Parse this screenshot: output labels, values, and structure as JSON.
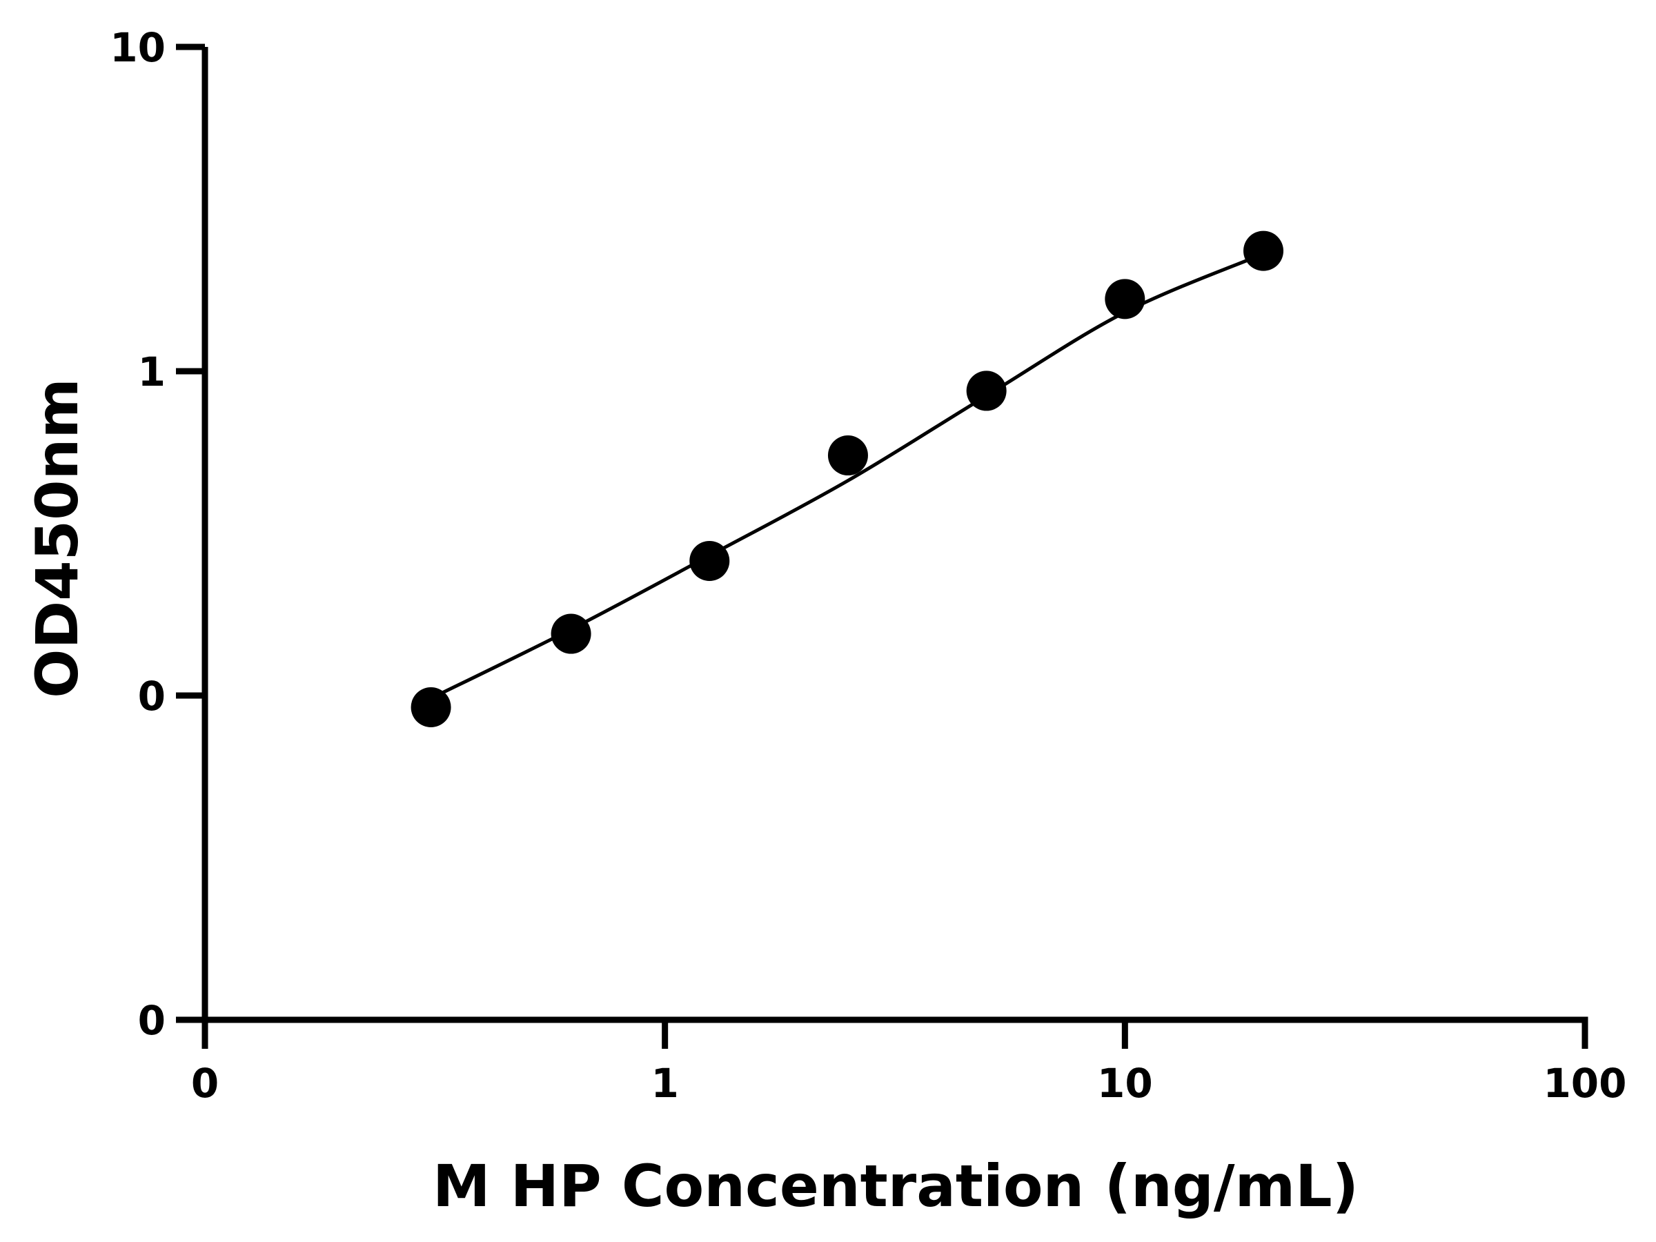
{
  "chart_data": {
    "type": "scatter",
    "title": "",
    "xlabel": "M HP Concentration (ng/mL)",
    "ylabel": "OD450nm",
    "x_scale": "log",
    "y_scale": "log",
    "xlim": [
      0.1,
      100
    ],
    "ylim": [
      0.01,
      10
    ],
    "x_ticks": [
      {
        "value": 0.1,
        "label": "0"
      },
      {
        "value": 1,
        "label": "1"
      },
      {
        "value": 10,
        "label": "10"
      },
      {
        "value": 100,
        "label": "100"
      }
    ],
    "y_ticks": [
      {
        "value": 0.01,
        "label": "0"
      },
      {
        "value": 0.1,
        "label": "0"
      },
      {
        "value": 1,
        "label": "1"
      },
      {
        "value": 10,
        "label": "10"
      }
    ],
    "grid": false,
    "legend": "none",
    "colors": {
      "marker": "#000000",
      "line": "#000000",
      "axis": "#000000"
    },
    "series": [
      {
        "points": [
          {
            "x": 0.31,
            "y": 0.092
          },
          {
            "x": 0.625,
            "y": 0.155
          },
          {
            "x": 1.25,
            "y": 0.26
          },
          {
            "x": 2.5,
            "y": 0.55
          },
          {
            "x": 5,
            "y": 0.87
          },
          {
            "x": 10,
            "y": 1.67
          },
          {
            "x": 20,
            "y": 2.35
          }
        ],
        "fit": [
          {
            "x": 0.31,
            "y": 0.098
          },
          {
            "x": 0.625,
            "y": 0.16
          },
          {
            "x": 1.25,
            "y": 0.27
          },
          {
            "x": 2.5,
            "y": 0.46
          },
          {
            "x": 5,
            "y": 0.84
          },
          {
            "x": 10,
            "y": 1.52
          },
          {
            "x": 20,
            "y": 2.3
          }
        ]
      }
    ]
  }
}
